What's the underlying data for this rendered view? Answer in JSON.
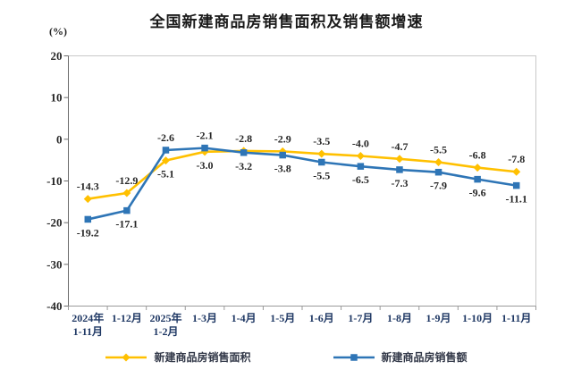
{
  "chart_data": {
    "type": "line",
    "title": "全国新建商品房销售面积及销售额增速",
    "ylabel": "(%)",
    "xlabel": "",
    "ylim": [
      -40,
      20
    ],
    "yticks": [
      20,
      10,
      0,
      -10,
      -20,
      -30,
      -40
    ],
    "grid": false,
    "legend_position": "bottom",
    "data_labels": true,
    "categories": [
      "2024年1-11月",
      "1-12月",
      "2025年1-2月",
      "1-3月",
      "1-4月",
      "1-5月",
      "1-6月",
      "1-7月",
      "1-8月",
      "1-9月",
      "1-10月",
      "1-11月"
    ],
    "category_lines": [
      [
        "2024年",
        "1-11月"
      ],
      [
        "1-12月"
      ],
      [
        "2025年",
        "1-2月"
      ],
      [
        "1-3月"
      ],
      [
        "1-4月"
      ],
      [
        "1-5月"
      ],
      [
        "1-6月"
      ],
      [
        "1-7月"
      ],
      [
        "1-8月"
      ],
      [
        "1-9月"
      ],
      [
        "1-10月"
      ],
      [
        "1-11月"
      ]
    ],
    "series": [
      {
        "name": "新建商品房销售面积",
        "color": "#FFC000",
        "marker": "diamond",
        "values": [
          -14.3,
          -12.9,
          -5.1,
          -3.0,
          -2.8,
          -2.9,
          -3.5,
          -4.0,
          -4.7,
          -5.5,
          -6.8,
          -7.8
        ]
      },
      {
        "name": "新建商品房销售额",
        "color": "#2E75B6",
        "marker": "square",
        "values": [
          -19.2,
          -17.1,
          -2.6,
          -2.1,
          -3.2,
          -3.8,
          -5.5,
          -6.5,
          -7.3,
          -7.9,
          -9.6,
          -11.1
        ]
      }
    ],
    "axis_colors": {
      "plot_border": "#c9c9c9",
      "y_axis": "#6b6b6b",
      "x_axis": "#9a9a9a"
    }
  }
}
